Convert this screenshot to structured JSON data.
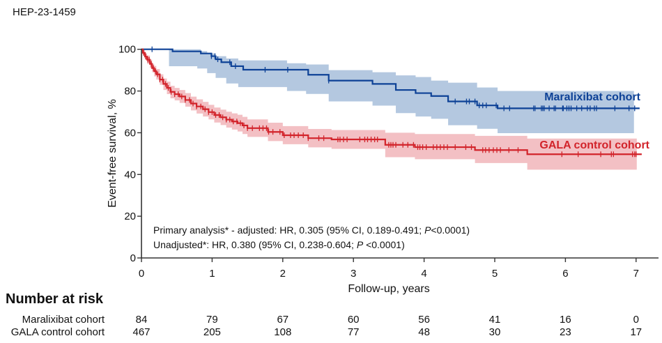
{
  "figure_id": "HEP-23-1459",
  "chart_data": {
    "type": "line",
    "subtype": "kaplan-meier step",
    "ylabel": "Event-free survival, %",
    "xlabel": "Follow-up, years",
    "xlim": [
      0,
      7
    ],
    "ylim": [
      0,
      100
    ],
    "xticks": [
      "0",
      "1",
      "2",
      "3",
      "4",
      "5",
      "6",
      "7"
    ],
    "yticks": [
      "0",
      "20",
      "40",
      "60",
      "80",
      "100"
    ],
    "grid": false,
    "series": [
      {
        "name": "Maralixibat cohort",
        "color": "#0d4196",
        "band_color": "#b4c8e0",
        "end_t": 7.05,
        "band_end_t": 6.97,
        "steps": [
          {
            "t": 0,
            "s": 100,
            "lo": 100,
            "hi": 100
          },
          {
            "t": 0.39,
            "s": 100,
            "lo": 91.9,
            "hi": 100
          },
          {
            "t": 0.44,
            "s": 99,
            "lo": 91.9,
            "hi": 100
          },
          {
            "t": 0.79,
            "s": 99,
            "lo": 90.8,
            "hi": 100
          },
          {
            "t": 0.84,
            "s": 98,
            "lo": 90.8,
            "hi": 99.1
          },
          {
            "t": 0.93,
            "s": 98,
            "lo": 88.6,
            "hi": 98
          },
          {
            "t": 0.99,
            "s": 96.7,
            "lo": 88.6,
            "hi": 98
          },
          {
            "t": 1.05,
            "s": 95.2,
            "lo": 86.3,
            "hi": 96.7
          },
          {
            "t": 1.13,
            "s": 93.8,
            "lo": 86.3,
            "hi": 96.7
          },
          {
            "t": 1.2,
            "s": 93.8,
            "lo": 83.6,
            "hi": 95.6
          },
          {
            "t": 1.27,
            "s": 91.9,
            "lo": 83.6,
            "hi": 95.6
          },
          {
            "t": 1.37,
            "s": 91.9,
            "lo": 81.9,
            "hi": 94.7
          },
          {
            "t": 1.44,
            "s": 90.2,
            "lo": 81.9,
            "hi": 94.7
          },
          {
            "t": 2.06,
            "s": 90.2,
            "lo": 80,
            "hi": 93.3
          },
          {
            "t": 2.33,
            "s": 90.2,
            "lo": 78.6,
            "hi": 92.7
          },
          {
            "t": 2.36,
            "s": 87.8,
            "lo": 78.6,
            "hi": 92.7
          },
          {
            "t": 2.65,
            "s": 85,
            "lo": 75,
            "hi": 90
          },
          {
            "t": 3.27,
            "s": 83.4,
            "lo": 73,
            "hi": 89
          },
          {
            "t": 3.6,
            "s": 80.5,
            "lo": 69.4,
            "hi": 87.5
          },
          {
            "t": 3.88,
            "s": 79,
            "lo": 67.8,
            "hi": 86.7
          },
          {
            "t": 4.1,
            "s": 77.6,
            "lo": 66.7,
            "hi": 85
          },
          {
            "t": 4.34,
            "s": 75,
            "lo": 63.6,
            "hi": 84
          },
          {
            "t": 4.75,
            "s": 73.1,
            "lo": 61.9,
            "hi": 81.7
          },
          {
            "t": 5.04,
            "s": 71.7,
            "lo": 59.8,
            "hi": 80
          }
        ],
        "censored": [
          0.15,
          0.99,
          1.04,
          1.08,
          1.25,
          1.33,
          1.75,
          2.07,
          2.65,
          4.44,
          4.6,
          4.64,
          4.72,
          4.78,
          4.83,
          4.88,
          5.02,
          5.13,
          5.21,
          5.55,
          5.57,
          5.66,
          5.68,
          5.7,
          5.77,
          5.84,
          5.86,
          5.96,
          5.97,
          6.02,
          6.05,
          6.08,
          6.16,
          6.23,
          6.31,
          6.35,
          6.41,
          6.44,
          6.7,
          6.9,
          6.98
        ]
      },
      {
        "name": "GALA control cohort",
        "color": "#d2232a",
        "band_color": "#f3c0c4",
        "end_t": 7.08,
        "band_end_t": 7.01,
        "steps": [
          {
            "t": 0,
            "s": 100,
            "lo": 100,
            "hi": 100
          },
          {
            "t": 0.02,
            "s": 98.3,
            "lo": 97,
            "hi": 99.5
          },
          {
            "t": 0.05,
            "s": 96.5,
            "lo": 95,
            "hi": 98
          },
          {
            "t": 0.08,
            "s": 95,
            "lo": 93,
            "hi": 97
          },
          {
            "t": 0.12,
            "s": 93,
            "lo": 91,
            "hi": 95
          },
          {
            "t": 0.15,
            "s": 91,
            "lo": 89,
            "hi": 93
          },
          {
            "t": 0.18,
            "s": 89.5,
            "lo": 87,
            "hi": 92
          },
          {
            "t": 0.21,
            "s": 88,
            "lo": 85.5,
            "hi": 90.5
          },
          {
            "t": 0.26,
            "s": 85.5,
            "lo": 83,
            "hi": 88
          },
          {
            "t": 0.31,
            "s": 83.4,
            "lo": 80.5,
            "hi": 86
          },
          {
            "t": 0.36,
            "s": 81.5,
            "lo": 78.5,
            "hi": 84.5
          },
          {
            "t": 0.41,
            "s": 79.6,
            "lo": 76.5,
            "hi": 82.5
          },
          {
            "t": 0.47,
            "s": 78.5,
            "lo": 75.5,
            "hi": 81.5
          },
          {
            "t": 0.54,
            "s": 77.4,
            "lo": 74.3,
            "hi": 80.5
          },
          {
            "t": 0.62,
            "s": 75.7,
            "lo": 72.5,
            "hi": 79
          },
          {
            "t": 0.7,
            "s": 74,
            "lo": 70.7,
            "hi": 77.3
          },
          {
            "t": 0.78,
            "s": 72.6,
            "lo": 69.2,
            "hi": 76
          },
          {
            "t": 0.87,
            "s": 71.3,
            "lo": 67.8,
            "hi": 74.8
          },
          {
            "t": 0.95,
            "s": 69.9,
            "lo": 66.4,
            "hi": 73.4
          },
          {
            "t": 1.03,
            "s": 68.5,
            "lo": 64.9,
            "hi": 72.1
          },
          {
            "t": 1.12,
            "s": 67.4,
            "lo": 63.7,
            "hi": 71.1
          },
          {
            "t": 1.2,
            "s": 66.3,
            "lo": 62.5,
            "hi": 70.1
          },
          {
            "t": 1.28,
            "s": 65.4,
            "lo": 61.5,
            "hi": 69.3
          },
          {
            "t": 1.36,
            "s": 64.6,
            "lo": 60.6,
            "hi": 68.6
          },
          {
            "t": 1.43,
            "s": 63.5,
            "lo": 59.4,
            "hi": 67.6
          },
          {
            "t": 1.5,
            "s": 62.2,
            "lo": 58,
            "hi": 66.4
          },
          {
            "t": 1.79,
            "s": 60.4,
            "lo": 56,
            "hi": 64.8
          },
          {
            "t": 2.0,
            "s": 58.8,
            "lo": 54.5,
            "hi": 63.2
          },
          {
            "t": 2.36,
            "s": 57.4,
            "lo": 53,
            "hi": 61.8
          },
          {
            "t": 2.69,
            "s": 56.8,
            "lo": 52.3,
            "hi": 61.3
          },
          {
            "t": 3.45,
            "s": 54.2,
            "lo": 48.3,
            "hi": 60
          },
          {
            "t": 3.87,
            "s": 53.1,
            "lo": 47.3,
            "hi": 59.4
          },
          {
            "t": 4.72,
            "s": 51.7,
            "lo": 45.5,
            "hi": 58.5
          },
          {
            "t": 5.46,
            "s": 49.7,
            "lo": 42.3,
            "hi": 57.2
          }
        ],
        "censored": [
          0.03,
          0.06,
          0.09,
          0.11,
          0.14,
          0.17,
          0.2,
          0.23,
          0.26,
          0.3,
          0.34,
          0.38,
          0.42,
          0.47,
          0.52,
          0.57,
          0.62,
          0.68,
          0.73,
          0.78,
          0.84,
          0.9,
          0.95,
          1.0,
          1.05,
          1.1,
          1.15,
          1.2,
          1.25,
          1.3,
          1.35,
          1.4,
          1.45,
          1.5,
          1.57,
          1.67,
          1.72,
          1.77,
          1.8,
          1.86,
          1.96,
          2.02,
          2.11,
          2.16,
          2.22,
          2.29,
          2.36,
          2.51,
          2.58,
          2.78,
          2.81,
          2.86,
          2.91,
          3.09,
          3.16,
          3.2,
          3.25,
          3.3,
          3.34,
          3.5,
          3.53,
          3.56,
          3.6,
          3.7,
          3.77,
          3.85,
          3.91,
          3.94,
          3.98,
          4.03,
          4.13,
          4.18,
          4.23,
          4.28,
          4.33,
          4.44,
          4.59,
          4.67,
          4.83,
          4.87,
          4.92,
          4.98,
          5.03,
          5.08,
          5.2,
          5.33,
          5.95,
          6.18,
          6.5,
          6.65,
          6.68,
          6.95,
          6.98,
          7.0
        ]
      }
    ],
    "annotations": [
      {
        "pre": "Primary analysis* - adjusted: HR, 0.305 (95% CI, 0.189-0.491; ",
        "italic": "P",
        "post": "<0.0001)"
      },
      {
        "pre": "Unadjusted*: HR, 0.380 (95% CI, 0.238-0.604; ",
        "italic": "P",
        "post": " <0.0001)"
      }
    ],
    "risk_table": {
      "title": "Number at risk",
      "times": [
        0,
        1,
        2,
        3,
        4,
        5,
        6,
        7
      ],
      "rows": [
        {
          "label": "Maralixibat cohort",
          "values": [
            "84",
            "79",
            "67",
            "60",
            "56",
            "41",
            "16",
            "0"
          ]
        },
        {
          "label": "GALA control cohort",
          "values": [
            "467",
            "205",
            "108",
            "77",
            "48",
            "30",
            "23",
            "17"
          ]
        }
      ]
    }
  }
}
